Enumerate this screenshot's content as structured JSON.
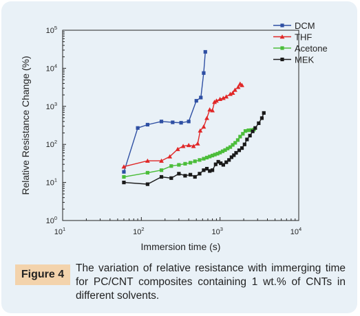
{
  "figure": {
    "label": "Figure 4",
    "caption": "The variation of relative resistance with immerging time for PC/CNT composites containing 1 wt.% of CNTs in different solvents."
  },
  "chart_data": {
    "type": "line",
    "title": "",
    "xlabel": "Immersion time (s)",
    "ylabel": "Relative Resistance Change (%)",
    "xscale": "log",
    "yscale": "log",
    "xlim": [
      10,
      10000
    ],
    "ylim": [
      1,
      100000
    ],
    "x_ticks": [
      {
        "value": 10,
        "base": "10",
        "exp": "1"
      },
      {
        "value": 100,
        "base": "10",
        "exp": "2"
      },
      {
        "value": 1000,
        "base": "10",
        "exp": "3"
      },
      {
        "value": 10000,
        "base": "10",
        "exp": "4"
      }
    ],
    "y_ticks": [
      {
        "value": 1,
        "base": "10",
        "exp": "0"
      },
      {
        "value": 10,
        "base": "10",
        "exp": "1"
      },
      {
        "value": 100,
        "base": "10",
        "exp": "2"
      },
      {
        "value": 1000,
        "base": "10",
        "exp": "3"
      },
      {
        "value": 10000,
        "base": "10",
        "exp": "4"
      },
      {
        "value": 100000,
        "base": "10",
        "exp": "5"
      }
    ],
    "grid": false,
    "legend_position": "top-right",
    "series": [
      {
        "name": "DCM",
        "color": "#2e4fa3",
        "marker": "square",
        "points": [
          [
            60,
            19
          ],
          [
            90,
            270
          ],
          [
            120,
            330
          ],
          [
            180,
            400
          ],
          [
            250,
            380
          ],
          [
            320,
            370
          ],
          [
            400,
            400
          ],
          [
            500,
            1400
          ],
          [
            570,
            1700
          ],
          [
            620,
            7500
          ],
          [
            650,
            27000
          ]
        ]
      },
      {
        "name": "THF",
        "color": "#e02727",
        "marker": "triangle",
        "points": [
          [
            60,
            26
          ],
          [
            120,
            37
          ],
          [
            180,
            37
          ],
          [
            230,
            48
          ],
          [
            290,
            75
          ],
          [
            340,
            90
          ],
          [
            400,
            95
          ],
          [
            460,
            90
          ],
          [
            520,
            105
          ],
          [
            560,
            230
          ],
          [
            620,
            290
          ],
          [
            680,
            490
          ],
          [
            740,
            820
          ],
          [
            800,
            780
          ],
          [
            850,
            1300
          ],
          [
            900,
            1400
          ],
          [
            1000,
            1550
          ],
          [
            1100,
            1650
          ],
          [
            1200,
            1800
          ],
          [
            1350,
            2100
          ],
          [
            1450,
            2250
          ],
          [
            1550,
            2700
          ],
          [
            1700,
            3200
          ],
          [
            1800,
            3900
          ],
          [
            1900,
            3600
          ]
        ]
      },
      {
        "name": "Acetone",
        "color": "#4bbd3a",
        "marker": "square",
        "points": [
          [
            60,
            14
          ],
          [
            120,
            18
          ],
          [
            180,
            21
          ],
          [
            240,
            27
          ],
          [
            300,
            29
          ],
          [
            360,
            31
          ],
          [
            420,
            33
          ],
          [
            480,
            36
          ],
          [
            550,
            39
          ],
          [
            620,
            42
          ],
          [
            680,
            45
          ],
          [
            740,
            48
          ],
          [
            800,
            51
          ],
          [
            860,
            54
          ],
          [
            930,
            57
          ],
          [
            1000,
            61
          ],
          [
            1080,
            66
          ],
          [
            1160,
            71
          ],
          [
            1250,
            78
          ],
          [
            1350,
            85
          ],
          [
            1450,
            97
          ],
          [
            1560,
            110
          ],
          [
            1680,
            130
          ],
          [
            1800,
            160
          ],
          [
            1950,
            190
          ],
          [
            2100,
            225
          ],
          [
            2300,
            235
          ],
          [
            2500,
            238
          ],
          [
            2700,
            245
          ]
        ]
      },
      {
        "name": "MEK",
        "color": "#1a1a1a",
        "marker": "square",
        "points": [
          [
            60,
            10
          ],
          [
            120,
            9
          ],
          [
            180,
            14
          ],
          [
            240,
            13
          ],
          [
            300,
            17
          ],
          [
            360,
            15
          ],
          [
            420,
            16
          ],
          [
            480,
            14
          ],
          [
            550,
            17
          ],
          [
            620,
            21
          ],
          [
            680,
            23
          ],
          [
            740,
            20
          ],
          [
            800,
            21
          ],
          [
            880,
            30
          ],
          [
            950,
            35
          ],
          [
            1020,
            32
          ],
          [
            1100,
            29
          ],
          [
            1200,
            34
          ],
          [
            1300,
            39
          ],
          [
            1400,
            46
          ],
          [
            1500,
            52
          ],
          [
            1600,
            60
          ],
          [
            1750,
            70
          ],
          [
            1900,
            80
          ],
          [
            2050,
            100
          ],
          [
            2200,
            135
          ],
          [
            2400,
            170
          ],
          [
            2600,
            220
          ],
          [
            2800,
            270
          ],
          [
            3100,
            360
          ],
          [
            3400,
            490
          ],
          [
            3600,
            670
          ]
        ]
      }
    ]
  }
}
